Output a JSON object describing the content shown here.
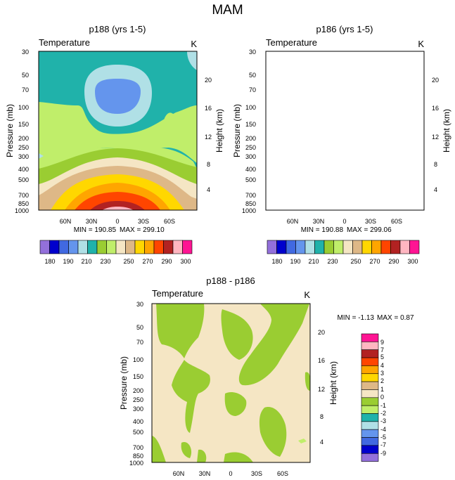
{
  "figure_title": "MAM",
  "colors": {
    "abs_levels": [
      "#9370DB",
      "#0000CD",
      "#4169E1",
      "#6495ED",
      "#B0E0E6",
      "#20B2AA",
      "#9ACD32",
      "#C0EE6A",
      "#F5E6C4",
      "#DEB887",
      "#FFD700",
      "#FFA500",
      "#FF4500",
      "#B22222",
      "#FFB6C1",
      "#FF1493"
    ],
    "diff_levels": [
      "#9370DB",
      "#0000CD",
      "#4169E1",
      "#6495ED",
      "#B0E0E6",
      "#20B2AA",
      "#C0EE6A",
      "#9ACD32",
      "#F5E6C4",
      "#DEB887",
      "#FFD700",
      "#FFA500",
      "#FF4500",
      "#B22222",
      "#FFB6C1",
      "#FF1493"
    ]
  },
  "chart_data": [
    {
      "type": "heatmap",
      "id": "p188",
      "title": "p188 (yrs 1-5)",
      "left_label": "Temperature",
      "right_label": "K",
      "ylabel": "Pressure (mb)",
      "ylabel_right": "Height (km)",
      "xticks": [
        "60N",
        "30N",
        "0",
        "30S",
        "60S"
      ],
      "pressure_ticks": [
        "30",
        "50",
        "70",
        "100",
        "150",
        "200",
        "250",
        "300",
        "400",
        "500",
        "700",
        "850",
        "1000"
      ],
      "height_ticks": [
        "20",
        "16",
        "12",
        "8",
        "4"
      ],
      "min_label": "MIN = 190.85",
      "max_label": "MAX = 299.10",
      "min": 190.85,
      "max": 299.1,
      "colorbar_labels": [
        "180",
        "190",
        "210",
        "230",
        "250",
        "270",
        "290",
        "300"
      ]
    },
    {
      "type": "heatmap",
      "id": "p186",
      "title": "p186 (yrs 1-5)",
      "left_label": "Temperature",
      "right_label": "K",
      "ylabel": "Pressure (mb)",
      "ylabel_right": "Height (km)",
      "xticks": [
        "60N",
        "30N",
        "0",
        "30S",
        "60S"
      ],
      "pressure_ticks": [
        "30",
        "50",
        "70",
        "100",
        "150",
        "200",
        "250",
        "300",
        "400",
        "500",
        "700",
        "850",
        "1000"
      ],
      "height_ticks": [
        "20",
        "16",
        "12",
        "8",
        "4"
      ],
      "min_label": "MIN = 190.88",
      "max_label": "MAX = 299.06",
      "min": 190.88,
      "max": 299.06,
      "colorbar_labels": [
        "180",
        "190",
        "210",
        "230",
        "250",
        "270",
        "290",
        "300"
      ]
    },
    {
      "type": "heatmap",
      "id": "diff",
      "title": "p188 - p186",
      "left_label": "Temperature",
      "right_label": "K",
      "ylabel": "Pressure (mb)",
      "ylabel_right": "Height (km)",
      "xticks": [
        "60N",
        "30N",
        "0",
        "30S",
        "60S"
      ],
      "pressure_ticks": [
        "30",
        "50",
        "70",
        "100",
        "150",
        "200",
        "250",
        "300",
        "400",
        "500",
        "700",
        "850",
        "1000"
      ],
      "height_ticks": [
        "20",
        "16",
        "12",
        "8",
        "4"
      ],
      "min_label": "MIN =  -1.13",
      "max_label": "MAX =   0.87",
      "min": -1.13,
      "max": 0.87,
      "colorbar_labels": [
        "9",
        "7",
        "5",
        "4",
        "3",
        "2",
        "1",
        "0",
        "-1",
        "-2",
        "-3",
        "-4",
        "-5",
        "-7",
        "-9"
      ]
    }
  ]
}
